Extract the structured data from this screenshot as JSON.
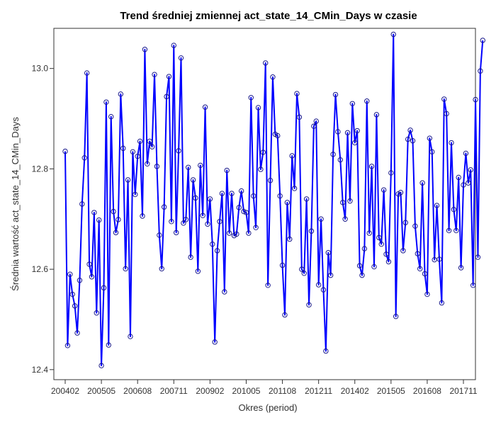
{
  "chart_data": {
    "type": "line",
    "title": "Trend średniej zmiennej act_state_14_CMin_Days w czasie",
    "xlabel": "Okres (period)",
    "ylabel": "Średnia wartość act_state_14_CMin_Days",
    "x_start": "200402",
    "x_tick_labels": [
      "200402",
      "200505",
      "200608",
      "200711",
      "200902",
      "201005",
      "201108",
      "201211",
      "201402",
      "201505",
      "201608",
      "201711"
    ],
    "y_ticks": [
      12.4,
      12.6,
      12.8,
      13.0
    ],
    "ylim": [
      12.38,
      13.08
    ],
    "grid": false,
    "legend": "none",
    "line_color": "#0000ff",
    "marker": "open-circle",
    "values": [
      12.835,
      12.448,
      12.59,
      12.55,
      12.527,
      12.473,
      12.578,
      12.73,
      12.822,
      12.991,
      12.61,
      12.585,
      12.713,
      12.513,
      12.698,
      12.408,
      12.563,
      12.933,
      12.449,
      12.904,
      12.715,
      12.673,
      12.699,
      12.949,
      12.841,
      12.601,
      12.778,
      12.466,
      12.834,
      12.749,
      12.825,
      12.855,
      12.706,
      13.038,
      12.81,
      12.855,
      12.844,
      12.988,
      12.805,
      12.668,
      12.601,
      12.724,
      12.944,
      12.984,
      12.695,
      13.046,
      12.673,
      12.836,
      13.021,
      12.692,
      12.699,
      12.803,
      12.624,
      12.778,
      12.742,
      12.596,
      12.807,
      12.707,
      12.923,
      12.69,
      12.74,
      12.65,
      12.455,
      12.637,
      12.695,
      12.751,
      12.555,
      12.797,
      12.672,
      12.751,
      12.667,
      12.67,
      12.723,
      12.756,
      12.715,
      12.713,
      12.672,
      12.942,
      12.746,
      12.683,
      12.922,
      12.799,
      12.833,
      13.011,
      12.568,
      12.777,
      12.983,
      12.869,
      12.866,
      12.746,
      12.608,
      12.509,
      12.733,
      12.66,
      12.826,
      12.761,
      12.95,
      12.903,
      12.6,
      12.592,
      12.74,
      12.529,
      12.676,
      12.885,
      12.895,
      12.569,
      12.7,
      12.559,
      12.437,
      12.633,
      12.588,
      12.829,
      12.948,
      12.874,
      12.818,
      12.733,
      12.7,
      12.872,
      12.736,
      12.93,
      12.852,
      12.876,
      12.607,
      12.588,
      12.641,
      12.935,
      12.672,
      12.805,
      12.605,
      12.908,
      12.663,
      12.65,
      12.758,
      12.63,
      12.615,
      12.792,
      13.068,
      12.506,
      12.75,
      12.753,
      12.637,
      12.693,
      12.859,
      12.877,
      12.856,
      12.686,
      12.631,
      12.601,
      12.772,
      12.591,
      12.55,
      12.861,
      12.834,
      12.619,
      12.727,
      12.62,
      12.533,
      12.939,
      12.91,
      12.677,
      12.852,
      12.719,
      12.677,
      12.783,
      12.603,
      12.768,
      12.831,
      12.772,
      12.798,
      12.568,
      12.938,
      12.624,
      12.995,
      13.056
    ]
  }
}
